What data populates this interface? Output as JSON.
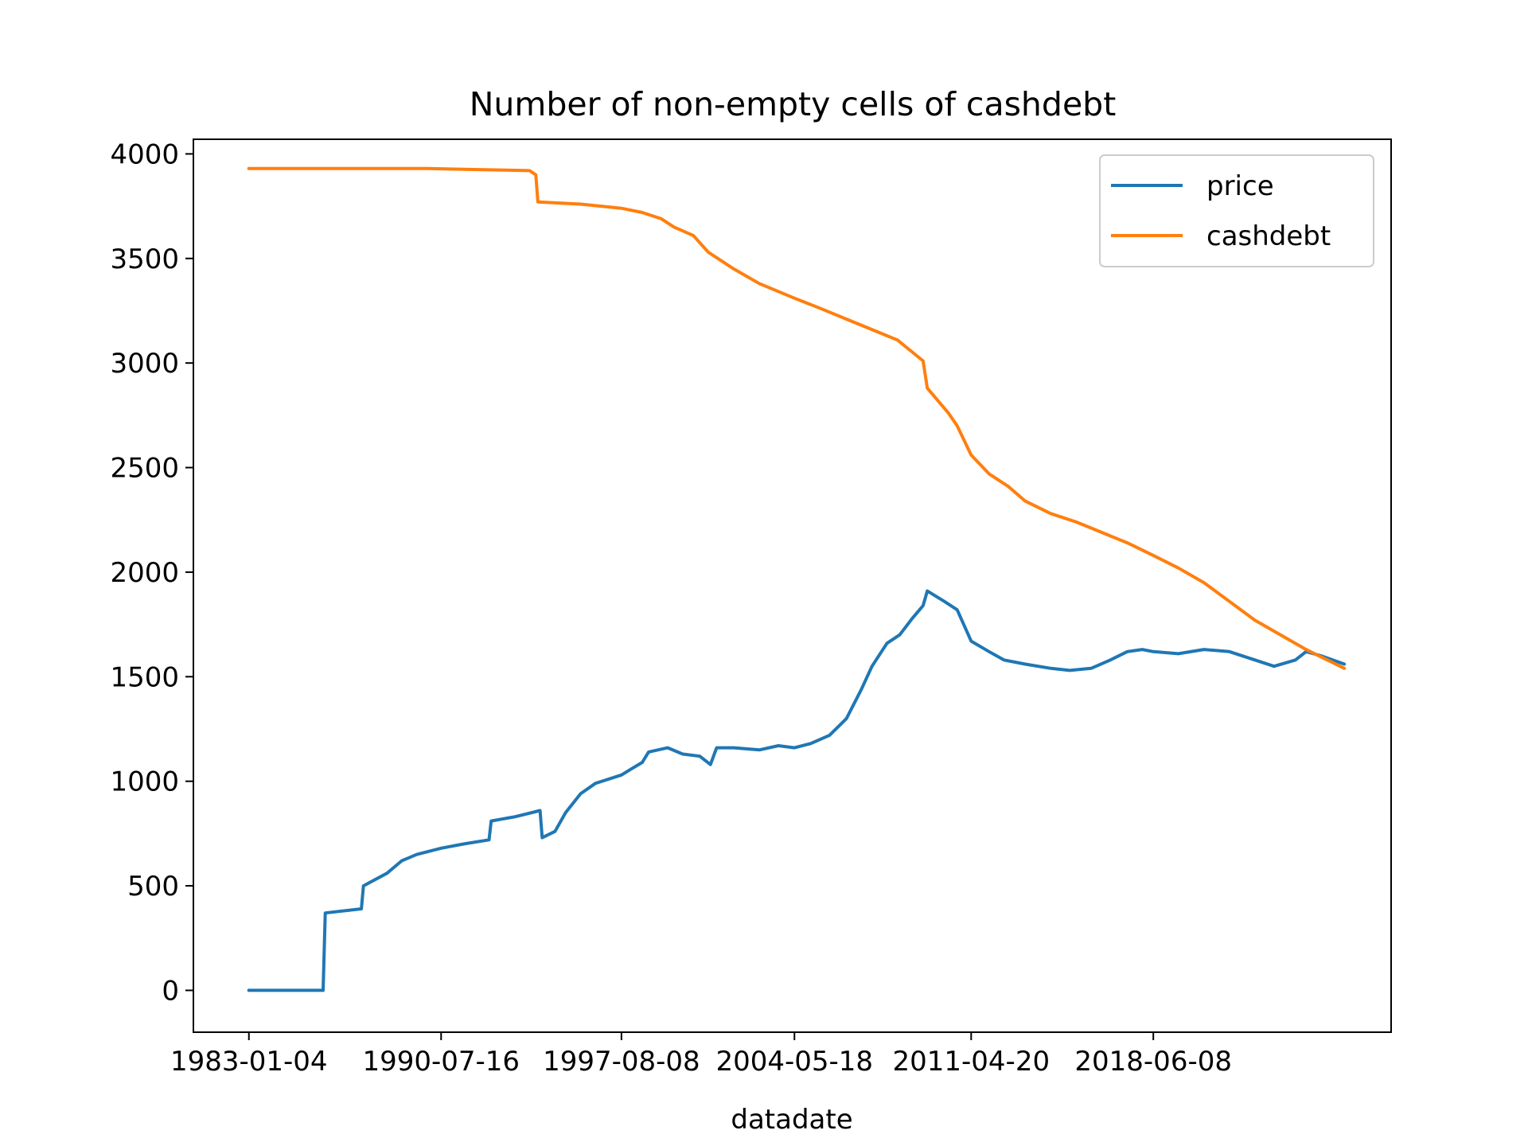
{
  "chart_data": {
    "type": "line",
    "title": "Number of non-empty cells of cashdebt",
    "xlabel": "datadate",
    "ylabel": "",
    "x_ticks": [
      "1983-01-04",
      "1990-07-16",
      "1997-08-08",
      "2004-05-18",
      "2011-04-20",
      "2018-06-08"
    ],
    "x_range": [
      "1980-11-01",
      "2027-10-01"
    ],
    "y_ticks": [
      "0",
      "500",
      "1000",
      "1500",
      "2000",
      "2500",
      "3000",
      "3500",
      "4000"
    ],
    "ylim": [
      -200,
      4070
    ],
    "grid": false,
    "legend_position": "upper right",
    "series": [
      {
        "name": "price",
        "color": "#1f77b4",
        "points": [
          [
            "1983-01-04",
            0
          ],
          [
            "1985-12-01",
            0
          ],
          [
            "1986-01-01",
            370
          ],
          [
            "1987-06-01",
            390
          ],
          [
            "1987-07-01",
            500
          ],
          [
            "1988-06-01",
            560
          ],
          [
            "1989-01-01",
            620
          ],
          [
            "1989-08-01",
            650
          ],
          [
            "1990-07-16",
            680
          ],
          [
            "1991-06-01",
            700
          ],
          [
            "1992-06-01",
            720
          ],
          [
            "1992-07-01",
            810
          ],
          [
            "1993-06-01",
            830
          ],
          [
            "1994-06-01",
            860
          ],
          [
            "1994-07-01",
            730
          ],
          [
            "1995-01-01",
            760
          ],
          [
            "1995-06-01",
            850
          ],
          [
            "1996-01-01",
            940
          ],
          [
            "1996-08-01",
            990
          ],
          [
            "1997-08-08",
            1030
          ],
          [
            "1998-01-01",
            1060
          ],
          [
            "1998-06-01",
            1090
          ],
          [
            "1998-09-01",
            1140
          ],
          [
            "1999-06-01",
            1160
          ],
          [
            "2000-01-01",
            1130
          ],
          [
            "2000-09-01",
            1120
          ],
          [
            "2001-02-01",
            1080
          ],
          [
            "2001-05-01",
            1160
          ],
          [
            "2002-01-01",
            1160
          ],
          [
            "2003-01-01",
            1150
          ],
          [
            "2003-10-01",
            1170
          ],
          [
            "2004-05-18",
            1160
          ],
          [
            "2005-01-01",
            1180
          ],
          [
            "2005-10-01",
            1220
          ],
          [
            "2006-06-01",
            1300
          ],
          [
            "2007-01-01",
            1440
          ],
          [
            "2007-06-01",
            1550
          ],
          [
            "2008-01-01",
            1660
          ],
          [
            "2008-07-01",
            1700
          ],
          [
            "2009-01-01",
            1780
          ],
          [
            "2009-06-01",
            1840
          ],
          [
            "2009-08-01",
            1910
          ],
          [
            "2010-04-01",
            1860
          ],
          [
            "2010-10-01",
            1820
          ],
          [
            "2011-04-20",
            1670
          ],
          [
            "2012-01-01",
            1620
          ],
          [
            "2012-08-01",
            1580
          ],
          [
            "2013-06-01",
            1560
          ],
          [
            "2014-06-01",
            1540
          ],
          [
            "2015-03-01",
            1530
          ],
          [
            "2016-01-01",
            1540
          ],
          [
            "2016-10-01",
            1580
          ],
          [
            "2017-06-01",
            1620
          ],
          [
            "2018-01-01",
            1630
          ],
          [
            "2018-06-08",
            1620
          ],
          [
            "2019-06-01",
            1610
          ],
          [
            "2020-06-01",
            1630
          ],
          [
            "2021-06-01",
            1620
          ],
          [
            "2022-06-01",
            1580
          ],
          [
            "2023-03-01",
            1550
          ],
          [
            "2024-01-01",
            1580
          ],
          [
            "2024-06-01",
            1620
          ],
          [
            "2025-01-01",
            1600
          ],
          [
            "2025-12-01",
            1560
          ]
        ]
      },
      {
        "name": "cashdebt",
        "color": "#ff7f0e",
        "points": [
          [
            "1983-01-04",
            3930
          ],
          [
            "1988-01-01",
            3930
          ],
          [
            "1990-01-01",
            3930
          ],
          [
            "1992-01-01",
            3925
          ],
          [
            "1994-01-01",
            3920
          ],
          [
            "1994-04-01",
            3900
          ],
          [
            "1994-05-01",
            3770
          ],
          [
            "1996-01-01",
            3760
          ],
          [
            "1997-08-08",
            3740
          ],
          [
            "1998-06-01",
            3720
          ],
          [
            "1999-03-01",
            3690
          ],
          [
            "1999-09-01",
            3650
          ],
          [
            "2000-06-01",
            3610
          ],
          [
            "2001-01-01",
            3530
          ],
          [
            "2002-01-01",
            3450
          ],
          [
            "2003-01-01",
            3380
          ],
          [
            "2004-05-18",
            3310
          ],
          [
            "2005-06-01",
            3260
          ],
          [
            "2006-06-01",
            3210
          ],
          [
            "2007-06-01",
            3160
          ],
          [
            "2008-06-01",
            3110
          ],
          [
            "2009-06-01",
            3010
          ],
          [
            "2009-08-01",
            2880
          ],
          [
            "2010-06-01",
            2760
          ],
          [
            "2010-10-01",
            2700
          ],
          [
            "2011-04-20",
            2560
          ],
          [
            "2012-01-01",
            2470
          ],
          [
            "2012-10-01",
            2410
          ],
          [
            "2013-06-01",
            2340
          ],
          [
            "2014-06-01",
            2280
          ],
          [
            "2015-06-01",
            2240
          ],
          [
            "2016-06-01",
            2190
          ],
          [
            "2017-06-01",
            2140
          ],
          [
            "2018-06-08",
            2080
          ],
          [
            "2019-06-01",
            2020
          ],
          [
            "2020-06-01",
            1950
          ],
          [
            "2021-06-01",
            1860
          ],
          [
            "2022-06-01",
            1770
          ],
          [
            "2023-06-01",
            1700
          ],
          [
            "2024-06-01",
            1630
          ],
          [
            "2025-12-01",
            1540
          ]
        ]
      }
    ]
  }
}
